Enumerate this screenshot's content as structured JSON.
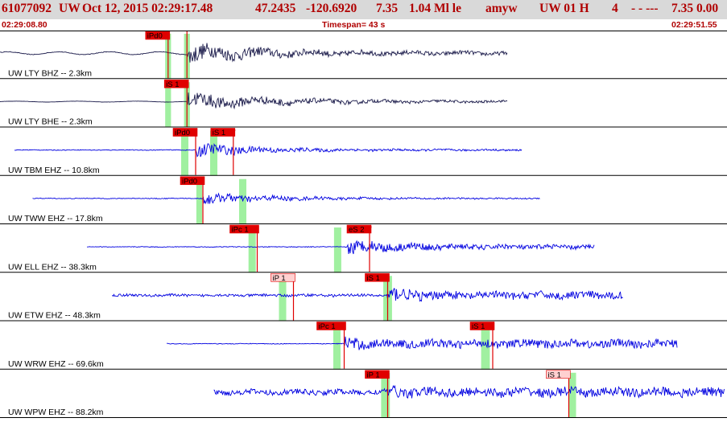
{
  "header": {
    "event_id": "61077092",
    "network": "UW",
    "datetime": "Oct 12, 2015 02:29:17.48",
    "lat": "47.2435",
    "lon": "-120.6920",
    "depth": "7.35",
    "magnitude": "1.04 Ml le",
    "auth": "amyw",
    "source": "UW 01 H",
    "code": "4",
    "flags": "- - ---",
    "extra": "7.35 0.00"
  },
  "timeline": {
    "start_time": "02:29:08.80",
    "timespan": "Timespan=  43 s",
    "end_time": "02:29:51.55"
  },
  "colors": {
    "title": "#b00000",
    "header_bg": "#d9d9d9",
    "trace_black": "#1a1a4a",
    "trace_blue": "#0000e0",
    "pick_fill": "#e00000",
    "pick_light_fill": "#ffd0d0",
    "residual_bar": "#a0f0a0"
  },
  "channels": [
    {
      "label": "UW LTY BHZ -- 2.3km",
      "color": "black",
      "trace": {
        "start": 0,
        "end": 0.7,
        "onset": 0.258,
        "base": 0.09,
        "peak": 0.48,
        "coda": 0.09,
        "decay": 0.9,
        "wave": 10
      },
      "picks": [
        {
          "label": "iPd0",
          "time": 0.232,
          "style": "solid"
        },
        {
          "label": "",
          "time": 0.258,
          "style": "solid"
        }
      ],
      "bars": [
        {
          "time": 0.232,
          "width": 0.008
        },
        {
          "time": 0.258,
          "width": 0.008
        }
      ]
    },
    {
      "label": "UW LTY BHE -- 2.3km",
      "color": "black",
      "trace": {
        "start": 0,
        "end": 0.7,
        "onset": 0.258,
        "base": 0.03,
        "peak": 0.42,
        "coda": 0.05,
        "decay": 1.0,
        "wave": 12
      },
      "picks": [
        {
          "label": "iS 1",
          "time": 0.258,
          "style": "solid"
        }
      ],
      "bars": [
        {
          "time": 0.232,
          "width": 0.008
        },
        {
          "time": 0.258,
          "width": 0.008
        }
      ]
    },
    {
      "label": "UW TBM EHZ -- 10.8km",
      "color": "blue",
      "trace": {
        "start": 0.02,
        "end": 0.72,
        "onset": 0.27,
        "base": 0.02,
        "peak": 0.38,
        "coda": 0.05,
        "decay": 0.7,
        "wave": 0
      },
      "picks": [
        {
          "label": "iPd0",
          "time": 0.27,
          "style": "solid"
        },
        {
          "label": "iS 1",
          "time": 0.322,
          "style": "solid",
          "marker": true
        }
      ],
      "bars": [
        {
          "time": 0.255,
          "width": 0.01
        },
        {
          "time": 0.295,
          "width": 0.01
        }
      ]
    },
    {
      "label": "UW TWW EHZ -- 17.8km",
      "color": "blue",
      "trace": {
        "start": 0.045,
        "end": 0.745,
        "onset": 0.28,
        "base": 0.02,
        "peak": 0.3,
        "coda": 0.03,
        "decay": 0.9,
        "wave": 0
      },
      "picks": [
        {
          "label": "iPd0",
          "time": 0.28,
          "style": "solid"
        }
      ],
      "bars": [
        {
          "time": 0.275,
          "width": 0.008
        },
        {
          "time": 0.335,
          "width": 0.01
        }
      ]
    },
    {
      "label": "UW ELL EHZ -- 38.3km",
      "color": "blue",
      "trace": {
        "start": 0.12,
        "end": 0.82,
        "onset": 0.48,
        "base": 0.02,
        "peak": 0.4,
        "coda": 0.12,
        "decay": 0.6,
        "wave": 0
      },
      "picks": [
        {
          "label": "iPc 1",
          "time": 0.355,
          "style": "solid"
        },
        {
          "label": "eS 2",
          "time": 0.51,
          "style": "solid",
          "marker": true
        }
      ],
      "bars": [
        {
          "time": 0.348,
          "width": 0.01
        },
        {
          "time": 0.466,
          "width": 0.01
        }
      ]
    },
    {
      "label": "UW ETW EHZ -- 48.3km",
      "color": "blue",
      "trace": {
        "start": 0.155,
        "end": 0.86,
        "onset": 0.535,
        "base": 0.07,
        "peak": 0.45,
        "coda": 0.2,
        "decay": 0.3,
        "wave": 0
      },
      "picks": [
        {
          "label": "iP 1",
          "time": 0.405,
          "style": "light"
        },
        {
          "label": "iS 1",
          "time": 0.535,
          "style": "solid"
        }
      ],
      "bars": [
        {
          "time": 0.39,
          "width": 0.01
        },
        {
          "time": 0.535,
          "width": 0.012
        }
      ]
    },
    {
      "label": "UW WRW EHZ -- 69.6km",
      "color": "blue",
      "trace": {
        "start": 0.23,
        "end": 0.935,
        "onset": 0.475,
        "base": 0.02,
        "peak": 0.45,
        "coda": 0.22,
        "decay": 0.15,
        "wave": 0
      },
      "picks": [
        {
          "label": "iPc 1",
          "time": 0.475,
          "style": "solid"
        },
        {
          "label": "iS 1",
          "time": 0.68,
          "style": "solid"
        }
      ],
      "bars": [
        {
          "time": 0.465,
          "width": 0.01
        },
        {
          "time": 0.67,
          "width": 0.012
        }
      ]
    },
    {
      "label": "UW WPW EHZ -- 88.2km",
      "color": "blue",
      "trace": {
        "start": 0.295,
        "end": 1.0,
        "onset": 0.535,
        "base": 0.15,
        "peak": 0.35,
        "coda": 0.25,
        "decay": 0.1,
        "wave": 0
      },
      "picks": [
        {
          "label": "iP 1",
          "time": 0.535,
          "style": "solid"
        },
        {
          "label": "iS 1",
          "time": 0.785,
          "style": "light"
        }
      ],
      "bars": [
        {
          "time": 0.532,
          "width": 0.012
        },
        {
          "time": 0.79,
          "width": 0.01
        }
      ]
    }
  ]
}
